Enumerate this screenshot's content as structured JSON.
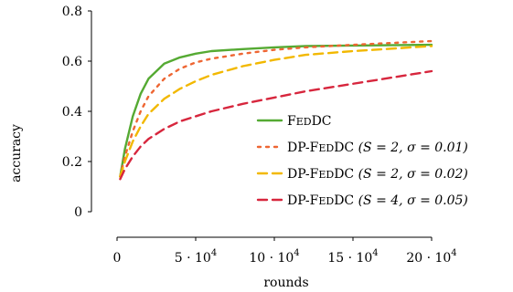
{
  "chart_data": {
    "type": "line",
    "xlabel": "rounds",
    "ylabel": "accuracy",
    "xlim": [
      0,
      200000
    ],
    "ylim": [
      0,
      0.8
    ],
    "y_ticks": [
      {
        "value": 0,
        "label": "0"
      },
      {
        "value": 0.2,
        "label": "0.2"
      },
      {
        "value": 0.4,
        "label": "0.4"
      },
      {
        "value": 0.6,
        "label": "0.6"
      },
      {
        "value": 0.8,
        "label": "0.8"
      }
    ],
    "x_ticks": [
      {
        "value": 0,
        "base": "0",
        "exp": ""
      },
      {
        "value": 50000,
        "base": "5 · 10",
        "exp": "4"
      },
      {
        "value": 100000,
        "base": "10 · 10",
        "exp": "4"
      },
      {
        "value": 150000,
        "base": "15 · 10",
        "exp": "4"
      },
      {
        "value": 200000,
        "base": "20 · 10",
        "exp": "4"
      }
    ],
    "grid": false,
    "legend_position": "bottom-right",
    "series": [
      {
        "name": "FedDC",
        "color": "#55aa33",
        "dash": "solid",
        "x": [
          2000,
          5000,
          10000,
          15000,
          20000,
          30000,
          40000,
          50000,
          60000,
          80000,
          100000,
          120000,
          150000,
          200000
        ],
        "y": [
          0.14,
          0.25,
          0.38,
          0.47,
          0.53,
          0.59,
          0.615,
          0.63,
          0.64,
          0.648,
          0.655,
          0.66,
          0.662,
          0.665
        ]
      },
      {
        "name": "DP-FedDC (S = 2, σ = 0.01)",
        "color": "#ee6633",
        "dash": "dotted",
        "x": [
          2000,
          5000,
          10000,
          15000,
          20000,
          30000,
          40000,
          50000,
          60000,
          80000,
          100000,
          120000,
          150000,
          200000
        ],
        "y": [
          0.14,
          0.22,
          0.32,
          0.4,
          0.46,
          0.53,
          0.57,
          0.595,
          0.61,
          0.63,
          0.645,
          0.655,
          0.665,
          0.68
        ]
      },
      {
        "name": "DP-FedDC (S = 2, σ = 0.02)",
        "color": "#f2b800",
        "dash": "dashed",
        "x": [
          2000,
          5000,
          10000,
          15000,
          20000,
          30000,
          40000,
          50000,
          60000,
          80000,
          100000,
          120000,
          150000,
          200000
        ],
        "y": [
          0.14,
          0.2,
          0.28,
          0.34,
          0.39,
          0.45,
          0.49,
          0.52,
          0.545,
          0.58,
          0.605,
          0.625,
          0.64,
          0.66
        ]
      },
      {
        "name": "DP-FedDC (S = 4, σ = 0.05)",
        "color": "#d7263d",
        "dash": "dashed",
        "x": [
          2000,
          5000,
          10000,
          15000,
          20000,
          30000,
          40000,
          50000,
          60000,
          80000,
          100000,
          120000,
          150000,
          200000
        ],
        "y": [
          0.13,
          0.17,
          0.22,
          0.26,
          0.29,
          0.33,
          0.36,
          0.38,
          0.4,
          0.43,
          0.455,
          0.48,
          0.51,
          0.56
        ]
      }
    ],
    "legend": [
      {
        "prefix": "",
        "sc": "FedDC",
        "params": ""
      },
      {
        "prefix": "DP-",
        "sc": "FedDC",
        "params": "(S = 2, σ = 0.01)"
      },
      {
        "prefix": "DP-",
        "sc": "FedDC",
        "params": "(S = 2, σ = 0.02)"
      },
      {
        "prefix": "DP-",
        "sc": "FedDC",
        "params": "(S = 4, σ = 0.05)"
      }
    ]
  }
}
